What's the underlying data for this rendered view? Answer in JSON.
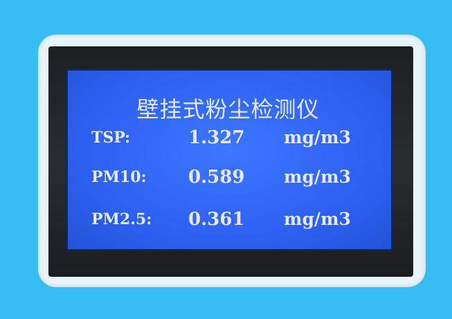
{
  "display": {
    "title": "壁挂式粉尘检测仪",
    "readings": [
      {
        "label": "TSP:",
        "value": "1.327",
        "unit": "mg/m3"
      },
      {
        "label": "PM10:",
        "value": "0.589",
        "unit": "mg/m3"
      },
      {
        "label": "PM2.5:",
        "value": "0.361",
        "unit": "mg/m3"
      }
    ]
  },
  "colors": {
    "background": "#36bdf2",
    "plate": "#e6f3f8",
    "bezel": "#1d1f22",
    "lcd_backlight": "#2f63f5",
    "lcd_text": "#e6e9f3"
  }
}
